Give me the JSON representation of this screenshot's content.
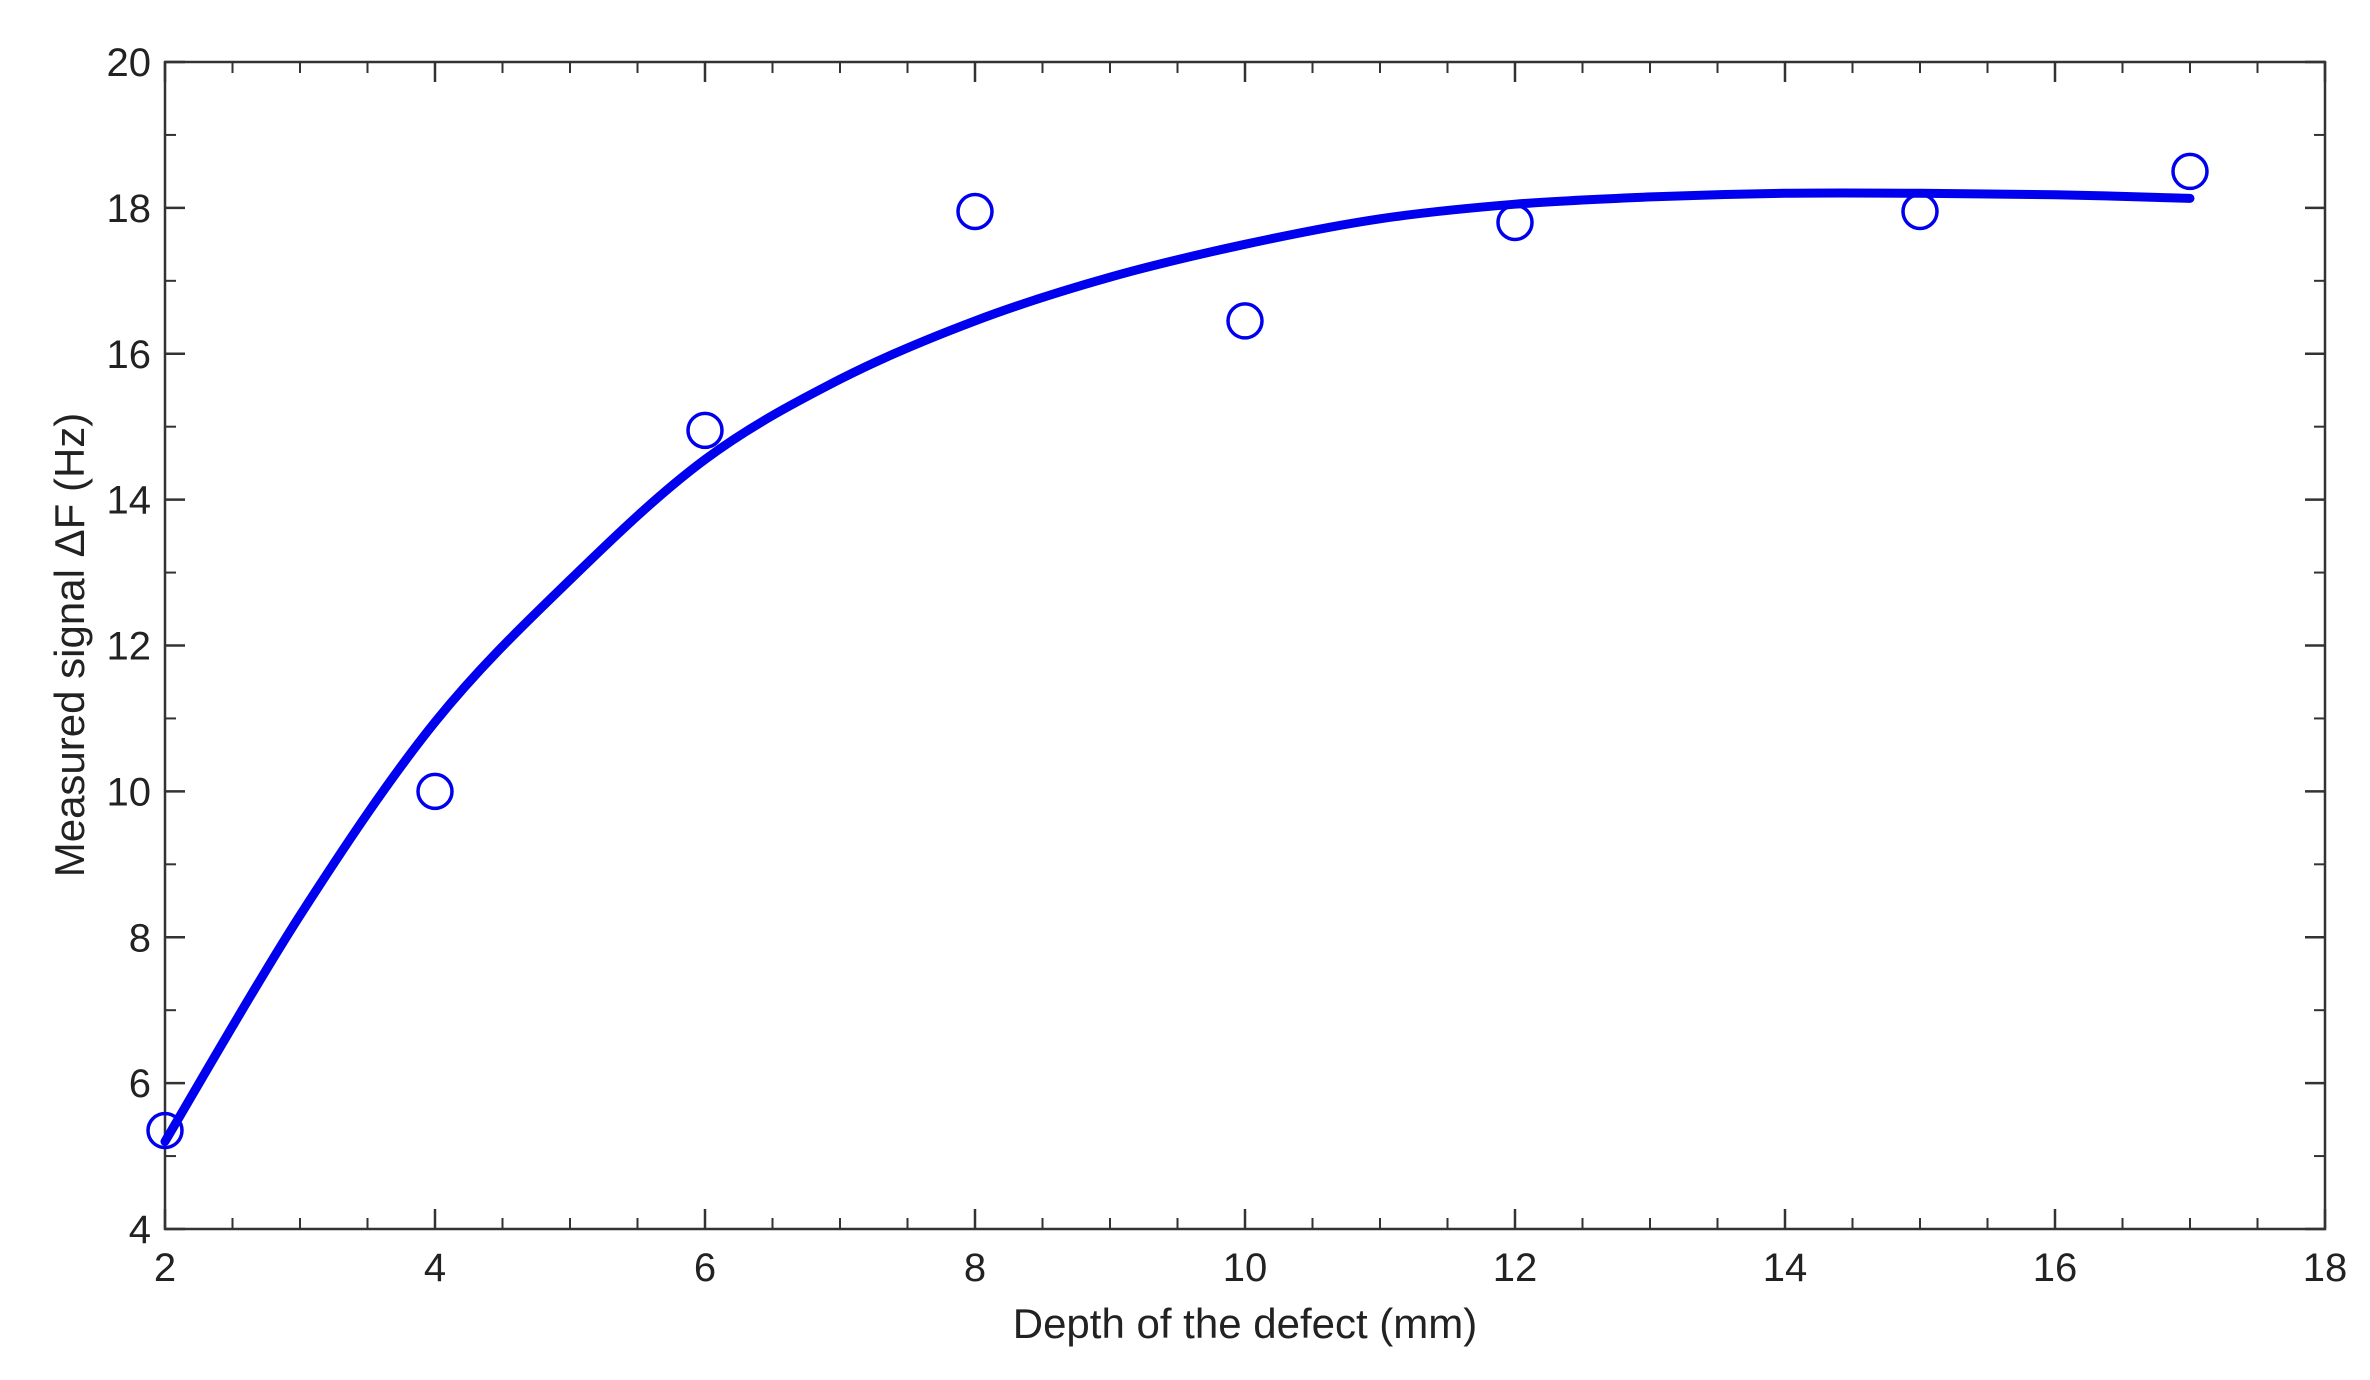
{
  "chart_data": {
    "type": "scatter",
    "title": "",
    "xlabel": "Depth of the defect (mm)",
    "ylabel": "Measured signal  ΔF (Hz)",
    "xlim": [
      2,
      18
    ],
    "ylim": [
      4,
      20
    ],
    "x_ticks": [
      2,
      4,
      6,
      8,
      10,
      12,
      14,
      16,
      18
    ],
    "y_ticks": [
      4,
      6,
      8,
      10,
      12,
      14,
      16,
      18,
      20
    ],
    "x_minor_step": 0.5,
    "y_minor_step": 1,
    "grid": false,
    "legend": "none",
    "colors": {
      "series": "#0000ee",
      "axes": "#333333",
      "text": "#222222"
    },
    "series": [
      {
        "type": "scatter",
        "marker": "open-circle",
        "x": [
          2,
          4,
          6,
          8,
          10,
          12,
          15,
          17
        ],
        "y": [
          5.35,
          10.0,
          14.95,
          17.95,
          16.45,
          17.8,
          17.95,
          18.5
        ]
      },
      {
        "type": "line",
        "x": [
          2,
          3,
          4,
          5,
          6,
          7,
          8,
          9,
          10,
          11,
          12,
          13,
          14,
          15,
          16,
          17
        ],
        "y": [
          5.2,
          8.3,
          10.95,
          12.9,
          14.55,
          15.65,
          16.45,
          17.05,
          17.5,
          17.85,
          18.05,
          18.15,
          18.2,
          18.2,
          18.18,
          18.13
        ]
      }
    ]
  }
}
